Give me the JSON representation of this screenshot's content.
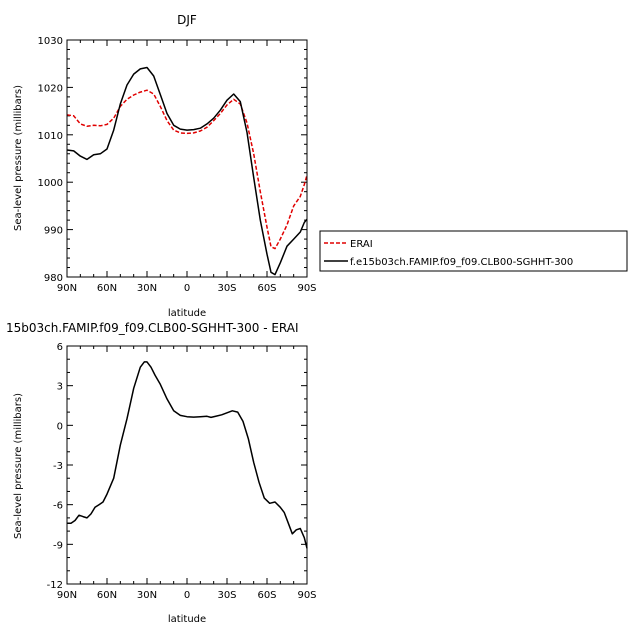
{
  "chart_data": [
    {
      "type": "line",
      "title": "DJF",
      "xlabel": "latitude",
      "ylabel": "Sea-level pressure (millibars)",
      "ylim": [
        980,
        1030
      ],
      "xlim": [
        90,
        -90
      ],
      "x_tick_values": [
        90,
        60,
        30,
        0,
        -30,
        -60,
        -90
      ],
      "x_tick_labels": [
        "90N",
        "60N",
        "30N",
        "0",
        "30S",
        "60S",
        "90S"
      ],
      "y_tick_values": [
        980,
        990,
        1000,
        1010,
        1020,
        1030
      ],
      "y_tick_labels": [
        "980",
        "990",
        "1000",
        "1010",
        "1020",
        "1030"
      ],
      "grid": false,
      "legend_position": "right",
      "series": [
        {
          "name": "ERAI",
          "color": "#e00000",
          "dash": "dashed",
          "points": [
            [
              90,
              1014.2
            ],
            [
              85,
              1014
            ],
            [
              80,
              1012.3
            ],
            [
              75,
              1011.8
            ],
            [
              70,
              1012
            ],
            [
              65,
              1011.9
            ],
            [
              60,
              1012.2
            ],
            [
              55,
              1013.5
            ],
            [
              50,
              1016
            ],
            [
              45,
              1017.5
            ],
            [
              40,
              1018.4
            ],
            [
              35,
              1019
            ],
            [
              30,
              1019.4
            ],
            [
              25,
              1018.6
            ],
            [
              20,
              1016
            ],
            [
              15,
              1013
            ],
            [
              10,
              1011
            ],
            [
              5,
              1010.4
            ],
            [
              0,
              1010.3
            ],
            [
              -5,
              1010.4
            ],
            [
              -10,
              1010.8
            ],
            [
              -15,
              1011.6
            ],
            [
              -20,
              1013
            ],
            [
              -25,
              1014.5
            ],
            [
              -30,
              1016.3
            ],
            [
              -35,
              1017.5
            ],
            [
              -40,
              1016.5
            ],
            [
              -45,
              1012.5
            ],
            [
              -50,
              1006
            ],
            [
              -55,
              998
            ],
            [
              -60,
              990.5
            ],
            [
              -63,
              986.4
            ],
            [
              -66,
              986
            ],
            [
              -70,
              988
            ],
            [
              -75,
              991
            ],
            [
              -80,
              995
            ],
            [
              -85,
              997
            ],
            [
              -88,
              999.5
            ],
            [
              -90,
              1001.5
            ]
          ]
        },
        {
          "name": "f.e15b03ch.FAMIP.f09_f09.CLB00-SGHHT-300",
          "color": "#000000",
          "dash": "solid",
          "points": [
            [
              90,
              1006.8
            ],
            [
              85,
              1006.6
            ],
            [
              80,
              1005.5
            ],
            [
              75,
              1004.8
            ],
            [
              70,
              1005.8
            ],
            [
              65,
              1006
            ],
            [
              60,
              1007
            ],
            [
              55,
              1011
            ],
            [
              50,
              1016.5
            ],
            [
              45,
              1020.5
            ],
            [
              40,
              1022.8
            ],
            [
              35,
              1023.9
            ],
            [
              30,
              1024.2
            ],
            [
              25,
              1022.4
            ],
            [
              20,
              1018.5
            ],
            [
              15,
              1014.5
            ],
            [
              10,
              1012
            ],
            [
              5,
              1011.2
            ],
            [
              0,
              1011
            ],
            [
              -5,
              1011.1
            ],
            [
              -10,
              1011.4
            ],
            [
              -15,
              1012.3
            ],
            [
              -20,
              1013.5
            ],
            [
              -25,
              1015.2
            ],
            [
              -30,
              1017.3
            ],
            [
              -35,
              1018.6
            ],
            [
              -40,
              1017
            ],
            [
              -45,
              1010.5
            ],
            [
              -50,
              1001
            ],
            [
              -55,
              992
            ],
            [
              -60,
              984.8
            ],
            [
              -63,
              981
            ],
            [
              -66,
              980.5
            ],
            [
              -70,
              983
            ],
            [
              -75,
              986.5
            ],
            [
              -80,
              988
            ],
            [
              -85,
              989.5
            ],
            [
              -88,
              991.5
            ],
            [
              -90,
              992.2
            ]
          ]
        }
      ]
    },
    {
      "type": "line",
      "title": "15b03ch.FAMIP.f09_f09.CLB00-SGHHT-300  -  ERAI",
      "xlabel": "latitude",
      "ylabel": "Sea-level pressure (millibars)",
      "ylim": [
        -12,
        6
      ],
      "xlim": [
        90,
        -90
      ],
      "x_tick_values": [
        90,
        60,
        30,
        0,
        -30,
        -60,
        -90
      ],
      "x_tick_labels": [
        "90N",
        "60N",
        "30N",
        "0",
        "30S",
        "60S",
        "90S"
      ],
      "y_tick_values": [
        -12,
        -9,
        -6,
        -3,
        0,
        3,
        6
      ],
      "y_tick_labels": [
        "-12",
        "-9",
        "-6",
        "-3",
        "0",
        "3",
        "6"
      ],
      "grid": false,
      "series": [
        {
          "color": "#000000",
          "dash": "solid",
          "points": [
            [
              90,
              -7.4
            ],
            [
              87,
              -7.4
            ],
            [
              84,
              -7.2
            ],
            [
              81,
              -6.8
            ],
            [
              78,
              -6.9
            ],
            [
              75,
              -7
            ],
            [
              72,
              -6.7
            ],
            [
              69,
              -6.2
            ],
            [
              66,
              -6
            ],
            [
              63,
              -5.8
            ],
            [
              60,
              -5.2
            ],
            [
              55,
              -4
            ],
            [
              50,
              -1.5
            ],
            [
              45,
              0.5
            ],
            [
              40,
              2.8
            ],
            [
              35,
              4.4
            ],
            [
              32,
              4.8
            ],
            [
              30,
              4.8
            ],
            [
              27,
              4.4
            ],
            [
              24,
              3.8
            ],
            [
              20,
              3.1
            ],
            [
              15,
              2
            ],
            [
              10,
              1.1
            ],
            [
              5,
              0.75
            ],
            [
              0,
              0.65
            ],
            [
              -5,
              0.62
            ],
            [
              -10,
              0.65
            ],
            [
              -15,
              0.68
            ],
            [
              -18,
              0.6
            ],
            [
              -22,
              0.7
            ],
            [
              -26,
              0.8
            ],
            [
              -30,
              0.95
            ],
            [
              -34,
              1.1
            ],
            [
              -38,
              1
            ],
            [
              -42,
              0.3
            ],
            [
              -46,
              -1
            ],
            [
              -50,
              -2.8
            ],
            [
              -54,
              -4.3
            ],
            [
              -58,
              -5.5
            ],
            [
              -62,
              -5.9
            ],
            [
              -66,
              -5.8
            ],
            [
              -70,
              -6.2
            ],
            [
              -73,
              -6.6
            ],
            [
              -76,
              -7.4
            ],
            [
              -79,
              -8.2
            ],
            [
              -82,
              -7.9
            ],
            [
              -85,
              -7.8
            ],
            [
              -88,
              -8.5
            ],
            [
              -90,
              -9.3
            ]
          ]
        }
      ]
    }
  ]
}
